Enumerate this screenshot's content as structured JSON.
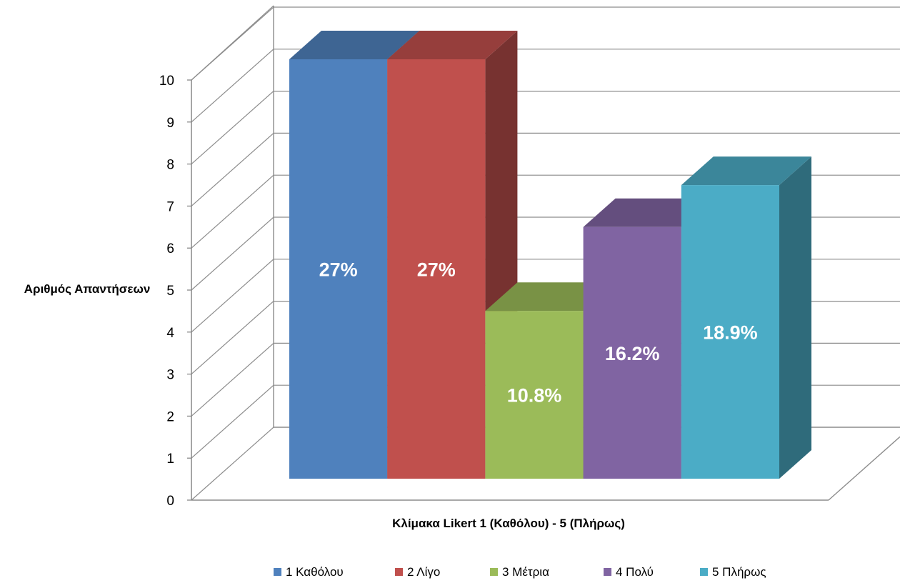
{
  "chart_data": {
    "type": "bar",
    "style": "3d-column",
    "title": "",
    "xlabel": "Κλίμακα Likert 1 (Καθόλου) - 5 (Πλήρως)",
    "ylabel": "Αριθμός Απαντήσεων",
    "ylim": [
      0,
      10
    ],
    "yticks": [
      "0",
      "1",
      "2",
      "3",
      "4",
      "5",
      "6",
      "7",
      "8",
      "9",
      "10"
    ],
    "grid": true,
    "legend_position": "bottom",
    "series": [
      {
        "name": "1 Καθόλου",
        "value": 10,
        "label": "27%",
        "color": "#4F81BD"
      },
      {
        "name": "2 Λίγο",
        "value": 10,
        "label": "27%",
        "color": "#C0504D"
      },
      {
        "name": "3 Μέτρια",
        "value": 4,
        "label": "10.8%",
        "color": "#9BBB59"
      },
      {
        "name": "4 Πολύ",
        "value": 6,
        "label": "16.2%",
        "color": "#8064A2"
      },
      {
        "name": "5 Πλήρως",
        "value": 7,
        "label": "18.9%",
        "color": "#4BACC6"
      }
    ]
  }
}
